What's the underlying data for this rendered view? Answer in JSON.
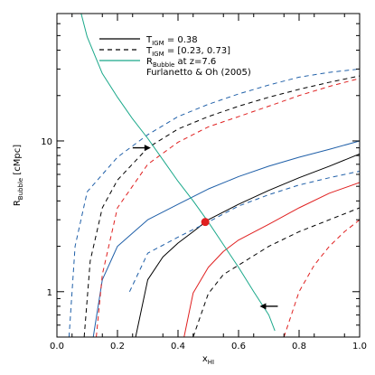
{
  "chart_data": {
    "type": "line",
    "xlabel": "x",
    "xlabel_sub": "HI",
    "ylabel": "R",
    "ylabel_sub": "Bubble",
    "ylabel_unit": " [cMpc]",
    "xlim": [
      0.0,
      1.0
    ],
    "ylim": [
      0.5,
      70
    ],
    "yscale": "log",
    "xticks": [
      {
        "value": 0.0,
        "label": "0.0"
      },
      {
        "value": 0.2,
        "label": "0.2"
      },
      {
        "value": 0.4,
        "label": "0.4"
      },
      {
        "value": 0.6,
        "label": "0.6"
      },
      {
        "value": 0.8,
        "label": "0.8"
      },
      {
        "value": 1.0,
        "label": "1.0"
      }
    ],
    "yticks": [
      {
        "value": 1,
        "label": "1"
      },
      {
        "value": 10,
        "label": "10"
      }
    ],
    "legend": {
      "placement": "top-left",
      "entries": [
        {
          "style": "solid",
          "color": "#000000",
          "label": "T",
          "sub": "IGM",
          "rest": " = 0.38"
        },
        {
          "style": "dashed",
          "color": "#000000",
          "label": "T",
          "sub": "IGM",
          "rest": " = [0.23, 0.73]"
        },
        {
          "style": "solid",
          "color": "#1aa88a",
          "label": "R",
          "sub": "Bubble",
          "rest": " at z=7.6"
        },
        {
          "style": "none",
          "color": "#000000",
          "label": "Furlanetto & Oh (2005)",
          "sub": "",
          "rest": ""
        }
      ]
    },
    "series": [
      {
        "color": "#000000",
        "dash": false,
        "x": [
          0.26,
          0.3,
          0.35,
          0.4,
          0.45,
          0.5,
          0.6,
          0.7,
          0.8,
          0.9,
          1.0
        ],
        "y": [
          0.5,
          1.2,
          1.7,
          2.1,
          2.5,
          3.0,
          3.8,
          4.7,
          5.7,
          6.8,
          8.2
        ]
      },
      {
        "color": "#000000",
        "dash": true,
        "x": [
          0.09,
          0.11,
          0.15,
          0.2,
          0.3,
          0.4,
          0.5,
          0.6,
          0.7,
          0.8,
          0.9,
          1.0
        ],
        "y": [
          0.5,
          1.6,
          3.6,
          5.5,
          9.0,
          12.0,
          14.5,
          17.0,
          19.5,
          22.0,
          24.5,
          27.0
        ]
      },
      {
        "color": "#000000",
        "dash": true,
        "x": [
          0.45,
          0.5,
          0.55,
          0.6,
          0.7,
          0.8,
          0.9,
          1.0
        ],
        "y": [
          0.5,
          0.97,
          1.3,
          1.5,
          2.0,
          2.5,
          3.0,
          3.6
        ]
      },
      {
        "color": "#1f5fa8",
        "dash": false,
        "x": [
          0.12,
          0.15,
          0.2,
          0.3,
          0.4,
          0.5,
          0.6,
          0.7,
          0.8,
          0.9,
          1.0
        ],
        "y": [
          0.5,
          1.2,
          2.0,
          3.0,
          3.8,
          4.8,
          5.8,
          6.8,
          7.8,
          8.8,
          10.0
        ]
      },
      {
        "color": "#1f5fa8",
        "dash": true,
        "x": [
          0.04,
          0.06,
          0.1,
          0.2,
          0.3,
          0.4,
          0.5,
          0.6,
          0.7,
          0.8,
          0.9,
          1.0
        ],
        "y": [
          0.5,
          2.0,
          4.6,
          7.8,
          11.0,
          14.5,
          17.5,
          20.5,
          23.5,
          26.5,
          28.5,
          30.0
        ]
      },
      {
        "color": "#1f5fa8",
        "dash": true,
        "x": [
          0.24,
          0.3,
          0.4,
          0.5,
          0.6,
          0.7,
          0.8,
          0.9,
          1.0
        ],
        "y": [
          1.0,
          1.8,
          2.3,
          2.9,
          3.7,
          4.4,
          5.1,
          5.7,
          6.3
        ]
      },
      {
        "color": "#e02020",
        "dash": false,
        "x": [
          0.42,
          0.45,
          0.5,
          0.55,
          0.6,
          0.7,
          0.8,
          0.9,
          1.0
        ],
        "y": [
          0.5,
          0.98,
          1.45,
          1.85,
          2.2,
          2.8,
          3.6,
          4.5,
          5.3
        ]
      },
      {
        "color": "#e02020",
        "dash": true,
        "x": [
          0.13,
          0.15,
          0.2,
          0.3,
          0.4,
          0.5,
          0.6,
          0.7,
          0.8,
          0.9,
          1.0
        ],
        "y": [
          0.5,
          1.3,
          3.6,
          7.0,
          9.8,
          12.4,
          14.5,
          17.0,
          20.0,
          23.0,
          26.0
        ]
      },
      {
        "color": "#e02020",
        "dash": true,
        "x": [
          0.75,
          0.8,
          0.85,
          0.9,
          0.95,
          1.0
        ],
        "y": [
          0.5,
          1.0,
          1.5,
          2.0,
          2.5,
          3.0
        ]
      },
      {
        "color": "#1aa88a",
        "dash": false,
        "x": [
          0.08,
          0.1,
          0.15,
          0.2,
          0.25,
          0.3,
          0.35,
          0.4,
          0.45,
          0.5,
          0.55,
          0.6,
          0.65,
          0.7,
          0.72
        ],
        "y": [
          70,
          49,
          28,
          19.5,
          14,
          10.4,
          7.5,
          5.4,
          4.0,
          2.9,
          2.05,
          1.45,
          1.0,
          0.7,
          0.55
        ]
      }
    ],
    "point": {
      "x": 0.49,
      "y": 2.9,
      "color": "#e02020"
    },
    "arrows": [
      {
        "x": 0.31,
        "y": 9.0,
        "direction": "right"
      },
      {
        "x": 0.67,
        "y": 0.8,
        "direction": "left"
      }
    ]
  }
}
